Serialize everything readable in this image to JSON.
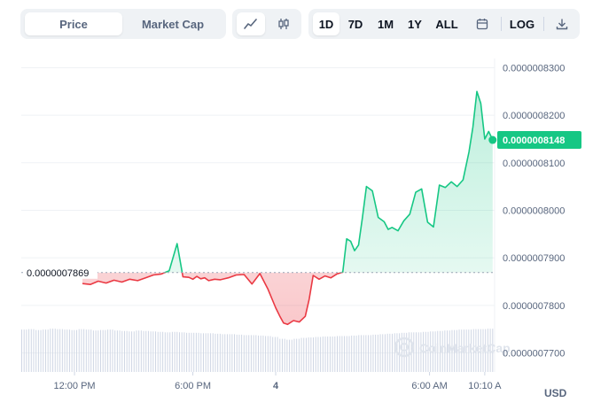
{
  "toolbar": {
    "mode_tabs": [
      {
        "label": "Price",
        "active": true
      },
      {
        "label": "Market Cap",
        "active": false
      }
    ],
    "chart_types": [
      {
        "icon": "line-chart-icon",
        "active": true
      },
      {
        "icon": "candlestick-icon",
        "active": false
      }
    ],
    "ranges": [
      {
        "label": "1D",
        "active": true
      },
      {
        "label": "7D",
        "active": false
      },
      {
        "label": "1M",
        "active": false
      },
      {
        "label": "1Y",
        "active": false
      },
      {
        "label": "ALL",
        "active": false
      }
    ],
    "calendar_icon": "calendar-icon",
    "log_label": "LOG",
    "download_icon": "download-icon"
  },
  "currency_label": "USD",
  "watermark": "CoinMarketCap",
  "colors": {
    "up": "#16c784",
    "down": "#ea3943",
    "badge": "#16c784",
    "text": "#58667e",
    "volume": "#cfd6e4"
  },
  "chart_data": {
    "type": "line",
    "title": "",
    "xlabel": "",
    "ylabel": "",
    "x_tick_labels": [
      "12:00 PM",
      "6:00 PM",
      "4",
      "6:00 AM",
      "10:10 A"
    ],
    "y_tick_labels": [
      "0.0000007700",
      "0.0000007800",
      "0.0000007900",
      "0.0000008000",
      "0.0000008100",
      "0.0000008200",
      "0.0000008300"
    ],
    "ylim": [
      7.66e-07,
      8.312e-07
    ],
    "xlim_hours": [
      -24,
      0
    ],
    "reference_price": 7.869e-07,
    "reference_label": "0.0000007869",
    "current_price": 8.148e-07,
    "current_label": "0.0000008148",
    "grid": true,
    "series": [
      {
        "x_hours_ago": [
          -20.9,
          -20.5,
          -20.1,
          -19.7,
          -19.3,
          -18.9,
          -18.5,
          -18.1,
          -17.7,
          -17.3,
          -16.9,
          -16.5,
          -16.1,
          -15.8,
          -15.5,
          -15.3,
          -15.1,
          -14.9,
          -14.7,
          -14.5,
          -14.2,
          -13.9,
          -13.5,
          -13.1,
          -12.7,
          -12.3,
          -11.9,
          -11.5,
          -11.1,
          -10.9,
          -10.7,
          -10.5,
          -10.2,
          -9.9,
          -9.6,
          -9.4,
          -9.2,
          -8.9,
          -8.6,
          -8.3,
          -8.0,
          -7.7,
          -7.5,
          -7.3,
          -7.1,
          -6.9,
          -6.7,
          -6.5,
          -6.2,
          -5.9,
          -5.6,
          -5.4,
          -5.2,
          -4.9,
          -4.6,
          -4.3,
          -4.0,
          -3.7,
          -3.4,
          -3.1,
          -2.8,
          -2.5,
          -2.2,
          -1.9,
          -1.6,
          -1.3,
          -1.1,
          -0.9,
          -0.7,
          -0.5,
          -0.3,
          -0.1
        ],
        "values": [
          7.846e-07,
          7.844e-07,
          7.851e-07,
          7.847e-07,
          7.853e-07,
          7.849e-07,
          7.855e-07,
          7.852e-07,
          7.858e-07,
          7.864e-07,
          7.866e-07,
          7.873e-07,
          7.93e-07,
          7.86e-07,
          7.859e-07,
          7.855e-07,
          7.861e-07,
          7.856e-07,
          7.858e-07,
          7.852e-07,
          7.855e-07,
          7.854e-07,
          7.858e-07,
          7.864e-07,
          7.865e-07,
          7.845e-07,
          7.867e-07,
          7.835e-07,
          7.795e-07,
          7.778e-07,
          7.763e-07,
          7.76e-07,
          7.768e-07,
          7.765e-07,
          7.777e-07,
          7.813e-07,
          7.863e-07,
          7.855e-07,
          7.862e-07,
          7.858e-07,
          7.866e-07,
          7.87e-07,
          7.94e-07,
          7.935e-07,
          7.915e-07,
          7.927e-07,
          7.985e-07,
          8.05e-07,
          8.041e-07,
          7.985e-07,
          7.976e-07,
          7.96e-07,
          7.964e-07,
          7.957e-07,
          7.978e-07,
          7.992e-07,
          8.038e-07,
          8.045e-07,
          7.975e-07,
          7.965e-07,
          8.053e-07,
          8.048e-07,
          8.06e-07,
          8.05e-07,
          8.064e-07,
          8.123e-07,
          8.175e-07,
          8.25e-07,
          8.225e-07,
          8.15e-07,
          8.166e-07,
          8.148e-07
        ]
      }
    ],
    "volume_relative": [
      0.92,
      0.93,
      0.91,
      0.92,
      0.94,
      0.93,
      0.92,
      0.91,
      0.93,
      0.92,
      0.9,
      0.91,
      0.92,
      0.9,
      0.89,
      0.88,
      0.9,
      0.89,
      0.88,
      0.87,
      0.86,
      0.87,
      0.86,
      0.85,
      0.85,
      0.84,
      0.84,
      0.83,
      0.82,
      0.82,
      0.81,
      0.8,
      0.8,
      0.79,
      0.78,
      0.76,
      0.72,
      0.7,
      0.72,
      0.74,
      0.75,
      0.76,
      0.77,
      0.77,
      0.78,
      0.78,
      0.79,
      0.8,
      0.8,
      0.81,
      0.82,
      0.83,
      0.84,
      0.85,
      0.86,
      0.86,
      0.87,
      0.88,
      0.89,
      0.9,
      0.91,
      0.92,
      0.92,
      0.93,
      0.93,
      0.94
    ]
  }
}
